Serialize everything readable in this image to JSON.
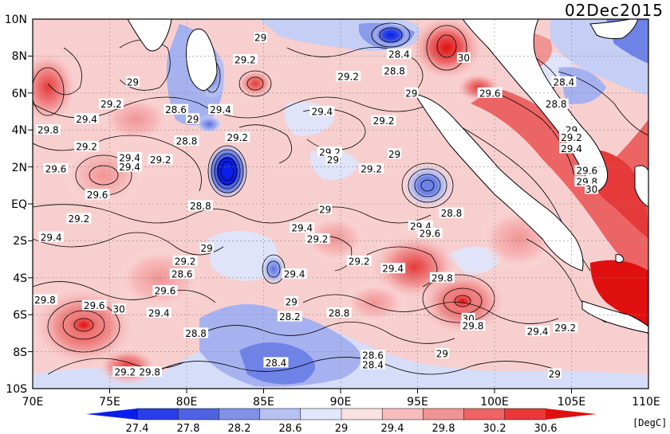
{
  "date": "02Dec2015",
  "units": "[DegC]",
  "y_labels": [
    "10N",
    "8N",
    "6N",
    "4N",
    "2N",
    "EQ",
    "2S",
    "4S",
    "6S",
    "8S",
    "10S"
  ],
  "x_labels": [
    "70E",
    "75E",
    "80E",
    "85E",
    "90E",
    "95E",
    "100E",
    "105E",
    "110E"
  ],
  "colorbar": {
    "ticks": [
      "27.4",
      "27.8",
      "28.2",
      "28.6",
      "29",
      "29.4",
      "29.8",
      "30.2",
      "30.6"
    ],
    "colors": [
      "#0a1eea",
      "#2a3ee6",
      "#4d63e0",
      "#8091e8",
      "#b7c1f2",
      "#e2e7fb",
      "#fbe2e2",
      "#f7bcbc",
      "#f19494",
      "#ec6464",
      "#e63a3a",
      "#e01010"
    ]
  },
  "contour_labels": [
    {
      "text": "29",
      "lon": 84.8,
      "lat": 9.0
    },
    {
      "text": "29.2",
      "lon": 83.8,
      "lat": 7.8
    },
    {
      "text": "29",
      "lon": 76.5,
      "lat": 6.6
    },
    {
      "text": "29.2",
      "lon": 75.1,
      "lat": 5.4
    },
    {
      "text": "29.4",
      "lon": 73.5,
      "lat": 4.6
    },
    {
      "text": "29.8",
      "lon": 71.0,
      "lat": 4.0
    },
    {
      "text": "28.6",
      "lon": 79.3,
      "lat": 5.1
    },
    {
      "text": "29",
      "lon": 80.4,
      "lat": 4.6
    },
    {
      "text": "29.4",
      "lon": 82.2,
      "lat": 5.1
    },
    {
      "text": "29.2",
      "lon": 83.3,
      "lat": 3.6
    },
    {
      "text": "29.4",
      "lon": 88.8,
      "lat": 5.0
    },
    {
      "text": "29.2",
      "lon": 92.8,
      "lat": 4.5
    },
    {
      "text": "29.2",
      "lon": 90.5,
      "lat": 6.9
    },
    {
      "text": "28.8",
      "lon": 93.5,
      "lat": 7.2
    },
    {
      "text": "28.4",
      "lon": 93.8,
      "lat": 8.1
    },
    {
      "text": "30",
      "lon": 98.0,
      "lat": 7.9
    },
    {
      "text": "29",
      "lon": 94.6,
      "lat": 6.0
    },
    {
      "text": "29.6",
      "lon": 99.7,
      "lat": 6.0
    },
    {
      "text": "28.4",
      "lon": 104.5,
      "lat": 6.6
    },
    {
      "text": "28.8",
      "lon": 104.0,
      "lat": 5.4
    },
    {
      "text": "29",
      "lon": 105.0,
      "lat": 4.0
    },
    {
      "text": "29.2",
      "lon": 105.0,
      "lat": 3.6
    },
    {
      "text": "29.4",
      "lon": 105.0,
      "lat": 3.0
    },
    {
      "text": "29.6",
      "lon": 106.0,
      "lat": 1.8
    },
    {
      "text": "29.8",
      "lon": 106.0,
      "lat": 1.2
    },
    {
      "text": "30",
      "lon": 106.3,
      "lat": 0.8
    },
    {
      "text": "29.2",
      "lon": 73.5,
      "lat": 3.1
    },
    {
      "text": "29.4",
      "lon": 76.3,
      "lat": 2.5
    },
    {
      "text": "29.4",
      "lon": 76.3,
      "lat": 2.0
    },
    {
      "text": "29.6",
      "lon": 71.5,
      "lat": 1.9
    },
    {
      "text": "29.2",
      "lon": 78.3,
      "lat": 2.4
    },
    {
      "text": "28.8",
      "lon": 80.0,
      "lat": 3.4
    },
    {
      "text": "29.6",
      "lon": 74.2,
      "lat": 0.5
    },
    {
      "text": "29.2",
      "lon": 89.3,
      "lat": 2.8
    },
    {
      "text": "29",
      "lon": 89.5,
      "lat": 2.4
    },
    {
      "text": "29",
      "lon": 93.5,
      "lat": 2.7
    },
    {
      "text": "29.2",
      "lon": 92.0,
      "lat": 1.9
    },
    {
      "text": "28.8",
      "lon": 80.9,
      "lat": -0.1
    },
    {
      "text": "28.8",
      "lon": 97.2,
      "lat": -0.5
    },
    {
      "text": "29",
      "lon": 89.0,
      "lat": -0.3
    },
    {
      "text": "29.2",
      "lon": 73.0,
      "lat": -0.8
    },
    {
      "text": "29.4",
      "lon": 87.5,
      "lat": -1.3
    },
    {
      "text": "29.2",
      "lon": 88.5,
      "lat": -1.9
    },
    {
      "text": "29.4",
      "lon": 95.2,
      "lat": -1.2
    },
    {
      "text": "29.6",
      "lon": 95.8,
      "lat": -1.6
    },
    {
      "text": "29.4",
      "lon": 71.2,
      "lat": -1.8
    },
    {
      "text": "29",
      "lon": 81.3,
      "lat": -2.4
    },
    {
      "text": "29.2",
      "lon": 79.9,
      "lat": -3.1
    },
    {
      "text": "28.6",
      "lon": 79.7,
      "lat": -3.8
    },
    {
      "text": "29.4",
      "lon": 87.0,
      "lat": -3.8
    },
    {
      "text": "29.2",
      "lon": 91.2,
      "lat": -3.1
    },
    {
      "text": "29.4",
      "lon": 93.4,
      "lat": -3.5
    },
    {
      "text": "29.8",
      "lon": 96.6,
      "lat": -4.0
    },
    {
      "text": "29.6",
      "lon": 78.6,
      "lat": -4.7
    },
    {
      "text": "29.8",
      "lon": 70.8,
      "lat": -5.2
    },
    {
      "text": "29.6",
      "lon": 74.0,
      "lat": -5.5
    },
    {
      "text": "30",
      "lon": 75.6,
      "lat": -5.7
    },
    {
      "text": "29.4",
      "lon": 78.2,
      "lat": -5.9
    },
    {
      "text": "29",
      "lon": 86.8,
      "lat": -5.3
    },
    {
      "text": "28.2",
      "lon": 86.7,
      "lat": -6.1
    },
    {
      "text": "28.8",
      "lon": 89.9,
      "lat": -5.9
    },
    {
      "text": "30",
      "lon": 98.3,
      "lat": -6.2
    },
    {
      "text": "29.8",
      "lon": 98.6,
      "lat": -6.6
    },
    {
      "text": "29.4",
      "lon": 102.8,
      "lat": -6.9
    },
    {
      "text": "29.2",
      "lon": 104.6,
      "lat": -6.7
    },
    {
      "text": "28.8",
      "lon": 80.6,
      "lat": -7.0
    },
    {
      "text": "28.6",
      "lon": 92.1,
      "lat": -8.2
    },
    {
      "text": "28.4",
      "lon": 92.1,
      "lat": -8.7
    },
    {
      "text": "28.4",
      "lon": 85.8,
      "lat": -8.6
    },
    {
      "text": "29",
      "lon": 96.6,
      "lat": -8.1
    },
    {
      "text": "29.2",
      "lon": 76.0,
      "lat": -9.1
    },
    {
      "text": "29.8",
      "lon": 77.6,
      "lat": -9.1
    },
    {
      "text": "29",
      "lon": 103.9,
      "lat": -9.2
    }
  ]
}
